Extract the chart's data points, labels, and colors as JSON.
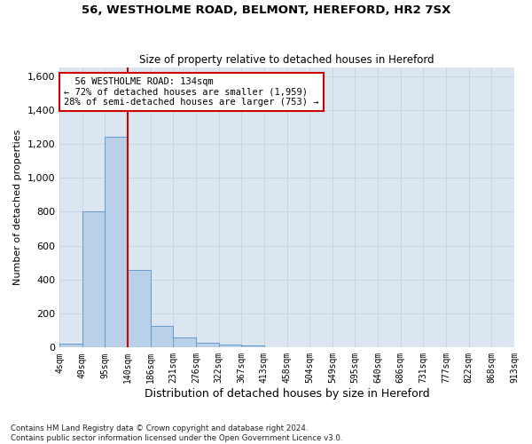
{
  "title1": "56, WESTHOLME ROAD, BELMONT, HEREFORD, HR2 7SX",
  "title2": "Size of property relative to detached houses in Hereford",
  "xlabel": "Distribution of detached houses by size in Hereford",
  "ylabel": "Number of detached properties",
  "bar_values": [
    25,
    800,
    1240,
    455,
    125,
    58,
    27,
    18,
    12,
    0,
    0,
    0,
    0,
    0,
    0,
    0,
    0,
    0,
    0,
    0
  ],
  "bin_labels": [
    "4sqm",
    "49sqm",
    "95sqm",
    "140sqm",
    "186sqm",
    "231sqm",
    "276sqm",
    "322sqm",
    "367sqm",
    "413sqm",
    "458sqm",
    "504sqm",
    "549sqm",
    "595sqm",
    "640sqm",
    "686sqm",
    "731sqm",
    "777sqm",
    "822sqm",
    "868sqm",
    "913sqm"
  ],
  "bar_color": "#b8d0e8",
  "bar_edge_color": "#6699cc",
  "grid_color": "#c8d4e4",
  "bg_color": "#dce6f0",
  "vline_x": 2.5,
  "annotation_line1": "  56 WESTHOLME ROAD: 134sqm",
  "annotation_line2": "← 72% of detached houses are smaller (1,959)",
  "annotation_line3": "28% of semi-detached houses are larger (753) →",
  "annotation_box_color": "#ffffff",
  "annotation_border_color": "#cc0000",
  "property_line_color": "#cc0000",
  "ylim": [
    0,
    1650
  ],
  "yticks": [
    0,
    200,
    400,
    600,
    800,
    1000,
    1200,
    1400,
    1600
  ],
  "footnote": "Contains HM Land Registry data © Crown copyright and database right 2024.\nContains public sector information licensed under the Open Government Licence v3.0."
}
